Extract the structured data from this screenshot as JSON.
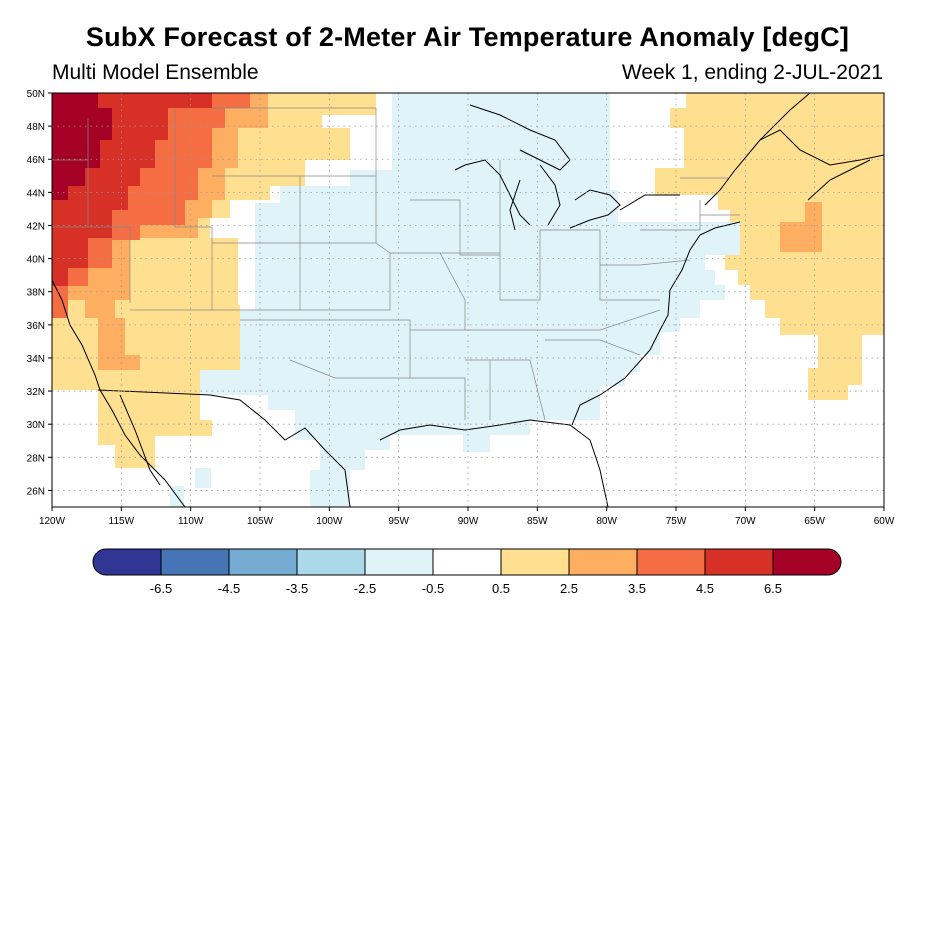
{
  "title": "SubX Forecast of 2-Meter Air Temperature Anomaly [degC]",
  "subtitle_left": "Multi Model Ensemble",
  "subtitle_right": "Week 1, ending 2-JUL-2021",
  "map": {
    "lon_range": [
      -120,
      -60
    ],
    "lat_range": [
      25,
      50
    ],
    "lon_ticks": [
      {
        "value": -120,
        "label": "120W"
      },
      {
        "value": -115,
        "label": "115W"
      },
      {
        "value": -110,
        "label": "110W"
      },
      {
        "value": -105,
        "label": "105W"
      },
      {
        "value": -100,
        "label": "100W"
      },
      {
        "value": -95,
        "label": "95W"
      },
      {
        "value": -90,
        "label": "90W"
      },
      {
        "value": -85,
        "label": "85W"
      },
      {
        "value": -80,
        "label": "80W"
      },
      {
        "value": -75,
        "label": "75W"
      },
      {
        "value": -70,
        "label": "70W"
      },
      {
        "value": -65,
        "label": "65W"
      },
      {
        "value": -60,
        "label": "60W"
      }
    ],
    "lat_ticks": [
      {
        "value": 26,
        "label": "26N"
      },
      {
        "value": 28,
        "label": "28N"
      },
      {
        "value": 30,
        "label": "30N"
      },
      {
        "value": 32,
        "label": "32N"
      },
      {
        "value": 34,
        "label": "34N"
      },
      {
        "value": 36,
        "label": "36N"
      },
      {
        "value": 38,
        "label": "38N"
      },
      {
        "value": 40,
        "label": "40N"
      },
      {
        "value": 42,
        "label": "42N"
      },
      {
        "value": 44,
        "label": "44N"
      },
      {
        "value": 46,
        "label": "46N"
      },
      {
        "value": 48,
        "label": "48N"
      },
      {
        "value": 50,
        "label": "50N"
      }
    ],
    "grid": true,
    "anomaly_regions": [
      {
        "class": "lt_-0.5",
        "bounds": [
          [
            -108,
            42
          ],
          [
            -80,
            48
          ],
          [
            -97,
            25
          ],
          [
            -108,
            32
          ]
        ]
      },
      {
        "class": "0.5_2.5",
        "bounds": [
          [
            -120,
            30
          ],
          [
            -105,
            50
          ],
          [
            -76,
            46
          ],
          [
            -60,
            32
          ]
        ]
      },
      {
        "class": "2.5_3.5",
        "bounds": [
          [
            -118,
            32
          ],
          [
            -112,
            38
          ],
          [
            -64,
            40
          ]
        ]
      },
      {
        "class": "3.5_4.5",
        "bounds": [
          [
            -120,
            36
          ],
          [
            -108,
            50
          ]
        ]
      },
      {
        "class": "4.5_6.5",
        "bounds": [
          [
            -120,
            38
          ],
          [
            -112,
            50
          ]
        ]
      },
      {
        "class": "gt_6.5",
        "bounds": [
          [
            -120,
            45
          ],
          [
            -116,
            50
          ]
        ]
      }
    ]
  },
  "colorbar": {
    "colors": [
      "#313695",
      "#4575b4",
      "#74add1",
      "#abd9e9",
      "#e0f3f8",
      "#ffffff",
      "#fee090",
      "#fdae61",
      "#f46d43",
      "#d73027",
      "#a50026"
    ],
    "labels": [
      "-6.5",
      "-4.5",
      "-3.5",
      "-2.5",
      "-0.5",
      "0.5",
      "2.5",
      "3.5",
      "4.5",
      "6.5"
    ]
  }
}
